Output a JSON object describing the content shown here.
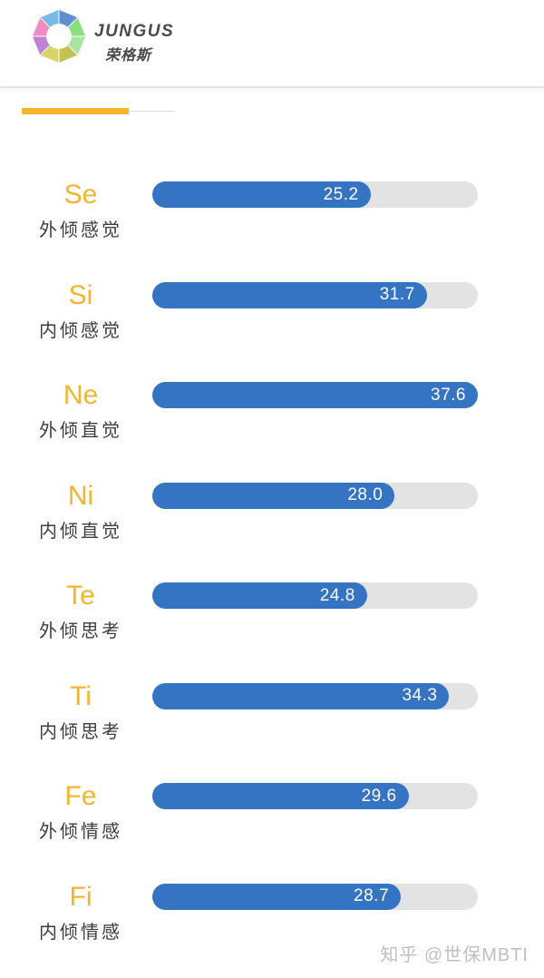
{
  "header": {
    "brand_name": "JUNGUS",
    "brand_name_cn": "荣格斯",
    "logo_icon": "jungus-octagon-color-wheel",
    "logo_segment_colors": [
      "#5b8fd1",
      "#8be07e",
      "#a5e5a0",
      "#c2c253",
      "#d9d468",
      "#c083d3",
      "#f18cc3",
      "#74bbe7"
    ]
  },
  "indicator": {
    "accent_color": "#f7b52c"
  },
  "colors": {
    "bar_fill": "#3573c3",
    "bar_track": "#e3e3e3",
    "function_code_label": "#f2b52c",
    "function_name_label": "#3d3d3d",
    "value_text": "#ffffff",
    "watermark_text": "#c0c0c0"
  },
  "chart_data": {
    "type": "bar",
    "orientation": "horizontal",
    "title": "",
    "xlabel": "",
    "ylabel": "",
    "xlim": [
      0,
      37.6
    ],
    "grid": false,
    "legend": false,
    "categories": [
      "Se",
      "Si",
      "Ne",
      "Ni",
      "Te",
      "Ti",
      "Fe",
      "Fi"
    ],
    "category_names": [
      "外倾感觉",
      "内倾感觉",
      "外倾直觉",
      "内倾直觉",
      "外倾思考",
      "内倾思考",
      "外倾情感",
      "内倾情感"
    ],
    "values": [
      25.2,
      31.7,
      37.6,
      28.0,
      24.8,
      34.3,
      29.6,
      28.7
    ],
    "value_labels": [
      "25.2",
      "31.7",
      "37.6",
      "28.0",
      "24.8",
      "34.3",
      "29.6",
      "28.7"
    ]
  },
  "watermark": {
    "text": "知乎 @世保MBTI"
  }
}
